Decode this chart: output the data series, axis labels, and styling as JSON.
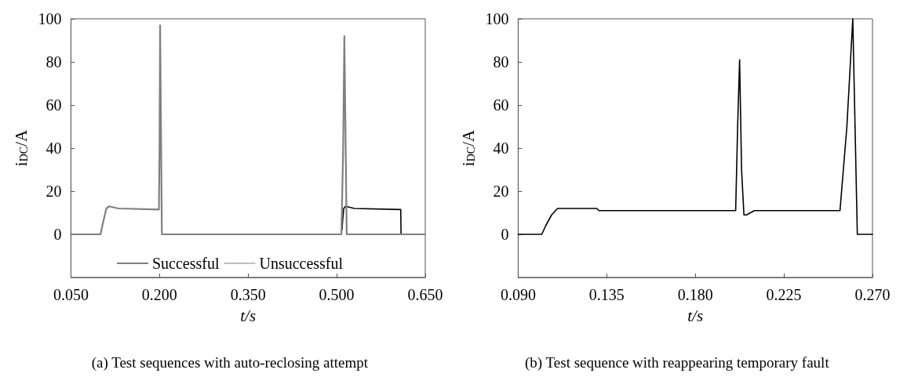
{
  "chart_data": [
    {
      "type": "line",
      "xlabel": "t/s",
      "ylabel": "i$_{DC}$/A",
      "annotations": [
        "(a) Test sequences with auto-reclosing attempt"
      ],
      "xlim": [
        0.05,
        0.65
      ],
      "xticks": [
        {
          "value": 0.05,
          "label": "0.050"
        },
        {
          "value": 0.2,
          "label": "0.200"
        },
        {
          "value": 0.35,
          "label": "0.350"
        },
        {
          "value": 0.5,
          "label": "0.500"
        },
        {
          "value": 0.65,
          "label": "0.650"
        }
      ],
      "ylim": [
        -20,
        100
      ],
      "yticks": [
        0,
        20,
        40,
        60,
        80,
        100
      ],
      "grid": false,
      "legend": "bottom",
      "marker": "none",
      "line_style": "solid",
      "series": [
        {
          "name": "Successful",
          "color": "#000000",
          "x": [
            0.509,
            0.51,
            0.512,
            0.515,
            0.53,
            0.6085,
            0.609
          ],
          "values": [
            2,
            6,
            12,
            13,
            12,
            11.5,
            0
          ]
        },
        {
          "name": "Unsuccessful",
          "color": "#808080",
          "x": [
            0.05,
            0.1,
            0.104,
            0.11,
            0.115,
            0.13,
            0.199,
            0.2,
            0.201,
            0.204,
            0.35,
            0.508,
            0.511,
            0.513,
            0.517,
            0.55,
            0.65
          ],
          "values": [
            0,
            0,
            5,
            12,
            13,
            12,
            11.5,
            40,
            97,
            0,
            0,
            0,
            40,
            92,
            0,
            0,
            0
          ]
        }
      ]
    },
    {
      "type": "line",
      "xlabel": "t/s",
      "ylabel": "i$_{DC}$/A",
      "annotations": [
        "(b) Test sequence with reappearing temporary fault"
      ],
      "xlim": [
        0.09,
        0.27
      ],
      "xticks": [
        {
          "value": 0.09,
          "label": "0.090"
        },
        {
          "value": 0.135,
          "label": "0.135"
        },
        {
          "value": 0.18,
          "label": "0.180"
        },
        {
          "value": 0.225,
          "label": "0.225"
        },
        {
          "value": 0.27,
          "label": "0.270"
        }
      ],
      "ylim": [
        -20,
        100
      ],
      "yticks": [
        0,
        20,
        40,
        60,
        80,
        100
      ],
      "grid": false,
      "legend": false,
      "marker": "none",
      "line_style": "solid",
      "series": [
        {
          "color": "#000000",
          "x": [
            0.09,
            0.102,
            0.104,
            0.107,
            0.11,
            0.13,
            0.131,
            0.2005,
            0.2015,
            0.2025,
            0.2035,
            0.2047,
            0.206,
            0.21,
            0.2535,
            0.257,
            0.26,
            0.2623,
            0.27
          ],
          "values": [
            0,
            0,
            4,
            9,
            12,
            12,
            11,
            11,
            50,
            81,
            30,
            9,
            9,
            11,
            11,
            50,
            100,
            0,
            0
          ]
        }
      ]
    }
  ]
}
